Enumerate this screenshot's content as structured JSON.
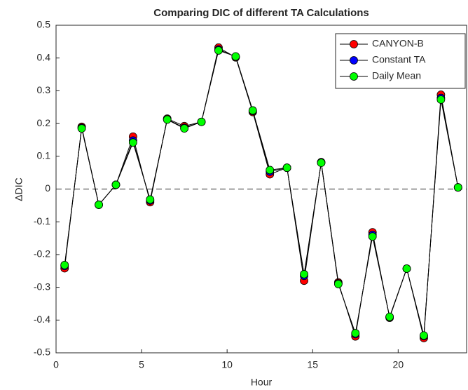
{
  "chart_data": {
    "type": "line",
    "title": "Comparing DIC of different TA Calculations",
    "xlabel": "Hour",
    "ylabel": "ΔDIC",
    "x": [
      0.5,
      1.5,
      2.5,
      3.5,
      4.5,
      5.5,
      6.5,
      7.5,
      8.5,
      9.5,
      10.5,
      11.5,
      12.5,
      13.5,
      14.5,
      15.5,
      16.5,
      17.5,
      18.5,
      19.5,
      20.5,
      21.5,
      22.5,
      23.5
    ],
    "series": [
      {
        "name": "CANYON-B",
        "color": "#ff0000",
        "values": [
          -0.242,
          0.19,
          -0.048,
          0.013,
          0.16,
          -0.04,
          0.215,
          0.192,
          0.205,
          0.432,
          0.402,
          0.235,
          0.045,
          0.065,
          -0.28,
          0.082,
          -0.285,
          -0.45,
          -0.132,
          -0.393,
          -0.243,
          -0.455,
          0.288,
          0.005
        ]
      },
      {
        "name": "Constant TA",
        "color": "#0000ff",
        "values": [
          -0.235,
          0.187,
          -0.048,
          0.013,
          0.148,
          -0.035,
          0.213,
          0.187,
          0.205,
          0.426,
          0.404,
          0.238,
          0.053,
          0.065,
          -0.265,
          0.081,
          -0.288,
          -0.443,
          -0.14,
          -0.391,
          -0.243,
          -0.449,
          0.278,
          0.005
        ]
      },
      {
        "name": "Daily Mean",
        "color": "#00ff00",
        "values": [
          -0.232,
          0.185,
          -0.048,
          0.013,
          0.142,
          -0.032,
          0.212,
          0.185,
          0.205,
          0.423,
          0.405,
          0.24,
          0.058,
          0.065,
          -0.26,
          0.08,
          -0.29,
          -0.44,
          -0.145,
          -0.39,
          -0.243,
          -0.447,
          0.273,
          0.005
        ]
      }
    ],
    "xlim": [
      0,
      24
    ],
    "ylim": [
      -0.5,
      0.5
    ],
    "xticks": [
      0,
      5,
      10,
      15,
      20
    ],
    "yticks": [
      -0.5,
      -0.4,
      -0.3,
      -0.2,
      -0.1,
      0,
      0.1,
      0.2,
      0.3,
      0.4,
      0.5
    ],
    "legend": "upper right"
  }
}
